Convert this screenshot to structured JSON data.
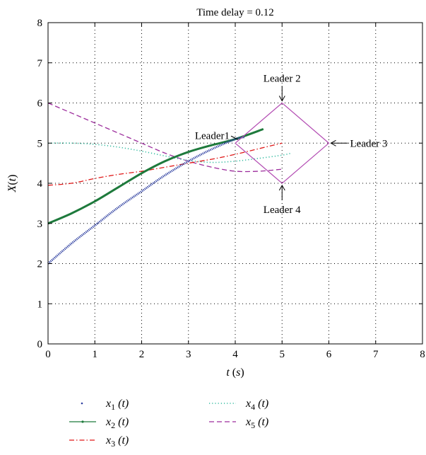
{
  "chart_data": {
    "type": "line",
    "title": "Time delay = 0.12",
    "xlabel": "t (s)",
    "ylabel": "X(t)",
    "xlim": [
      0,
      8
    ],
    "ylim": [
      0,
      8
    ],
    "xticks": [
      0,
      1,
      2,
      3,
      4,
      5,
      6,
      7,
      8
    ],
    "yticks": [
      0,
      1,
      2,
      3,
      4,
      5,
      6,
      7,
      8
    ],
    "grid": true,
    "legend_position": "below",
    "series": [
      {
        "name": "x1 (t)",
        "color": "#2e3fa0",
        "style": "dotted-markers",
        "x": [
          0,
          0.5,
          1,
          1.5,
          2,
          2.5,
          3,
          3.5,
          4,
          4.2
        ],
        "y": [
          2.0,
          2.5,
          2.95,
          3.4,
          3.8,
          4.2,
          4.55,
          4.85,
          5.1,
          5.15
        ]
      },
      {
        "name": "x2 (t)",
        "color": "#1e7a3c",
        "style": "solid-markers",
        "x": [
          0,
          0.5,
          1,
          1.5,
          2,
          2.5,
          3,
          3.5,
          4,
          4.6
        ],
        "y": [
          3.0,
          3.25,
          3.55,
          3.9,
          4.25,
          4.55,
          4.78,
          4.95,
          5.1,
          5.35
        ]
      },
      {
        "name": "x3 (t)",
        "color": "#e01818",
        "style": "dash-dot",
        "x": [
          0,
          0.5,
          1,
          1.5,
          2,
          2.5,
          3,
          3.5,
          4,
          4.5,
          5
        ],
        "y": [
          3.95,
          4.0,
          4.12,
          4.22,
          4.3,
          4.4,
          4.5,
          4.6,
          4.72,
          4.86,
          5.0
        ]
      },
      {
        "name": "x4 (t)",
        "color": "#33bba0",
        "style": "dotted",
        "x": [
          0,
          0.5,
          1,
          1.5,
          2,
          2.5,
          3,
          3.5,
          4,
          4.5,
          5,
          5.2
        ],
        "y": [
          5.0,
          5.0,
          4.97,
          4.9,
          4.8,
          4.68,
          4.57,
          4.52,
          4.55,
          4.62,
          4.7,
          4.75
        ]
      },
      {
        "name": "x5 (t)",
        "color": "#9c2c9c",
        "style": "dashed",
        "x": [
          0,
          0.5,
          1,
          1.5,
          2,
          2.5,
          3,
          3.5,
          4,
          4.5,
          5
        ],
        "y": [
          6.0,
          5.75,
          5.5,
          5.25,
          5.0,
          4.75,
          4.55,
          4.4,
          4.3,
          4.3,
          4.35
        ]
      }
    ],
    "leader_polygon": {
      "color": "#b24ab2",
      "x": [
        4.0,
        5.0,
        6.0,
        5.0,
        4.0
      ],
      "y": [
        5.0,
        6.0,
        5.0,
        4.0,
        5.0
      ]
    },
    "annotations": [
      {
        "text": "Leader1",
        "x": 4.0,
        "y": 5.0
      },
      {
        "text": "Leader 2",
        "x": 5.0,
        "y": 6.0
      },
      {
        "text": "Leader 3",
        "x": 6.0,
        "y": 5.0
      },
      {
        "text": "Leader 4",
        "x": 5.0,
        "y": 4.0
      }
    ]
  }
}
